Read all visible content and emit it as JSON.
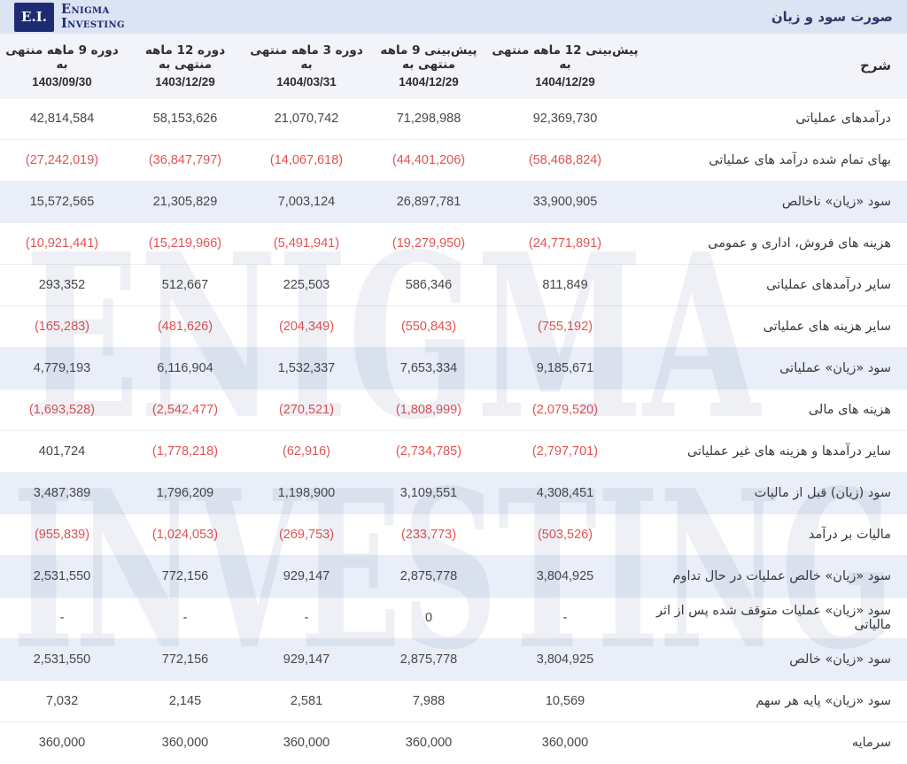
{
  "header": {
    "title": "صورت سود و زیان"
  },
  "brand": {
    "monogram": "E.I.",
    "name_line1": "Enigma",
    "name_line2": "Investing"
  },
  "watermark": {
    "line1": "ENIGMA",
    "line2": "INVESTING"
  },
  "colors": {
    "brand_navy": "#1d2c72",
    "topbar_bg": "#dce3f2",
    "header_row_bg": "#f2f4fa",
    "highlight_row": "#e9eef8",
    "negative_red": "#e35252"
  },
  "table": {
    "desc_header": "شرح",
    "columns": [
      {
        "period": "پیش‌بینی 12 ماهه منتهی به",
        "date": "1404/12/29"
      },
      {
        "period": "پیش‌بینی 9 ماهه منتهی به",
        "date": "1404/12/29"
      },
      {
        "period": "دوره 3 ماهه منتهی به",
        "date": "1404/03/31"
      },
      {
        "period": "دوره 12 ماهه منتهی به",
        "date": "1403/12/29"
      },
      {
        "period": "دوره 9 ماهه منتهی به",
        "date": "1403/09/30"
      }
    ],
    "rows": [
      {
        "label": "درآمدهای عملیاتی",
        "highlight": false,
        "values": [
          "92,369,730",
          "71,298,988",
          "21,070,742",
          "58,153,626",
          "42,814,584"
        ]
      },
      {
        "label": "بهای تمام شده درآمد های عملیاتی",
        "highlight": false,
        "values": [
          "(58,468,824)",
          "(44,401,206)",
          "(14,067,618)",
          "(36,847,797)",
          "(27,242,019)"
        ]
      },
      {
        "label": "سود «زیان» ناخالص",
        "highlight": true,
        "values": [
          "33,900,905",
          "26,897,781",
          "7,003,124",
          "21,305,829",
          "15,572,565"
        ]
      },
      {
        "label": "هزینه های فروش، اداری و عمومی",
        "highlight": false,
        "values": [
          "(24,771,891)",
          "(19,279,950)",
          "(5,491,941)",
          "(15,219,966)",
          "(10,921,441)"
        ]
      },
      {
        "label": "سایر درآمدهای عملیاتی",
        "highlight": false,
        "values": [
          "811,849",
          "586,346",
          "225,503",
          "512,667",
          "293,352"
        ]
      },
      {
        "label": "سایر هزینه های عملیاتی",
        "highlight": false,
        "values": [
          "(755,192)",
          "(550,843)",
          "(204,349)",
          "(481,626)",
          "(165,283)"
        ]
      },
      {
        "label": "سود «زیان» عملیاتی",
        "highlight": true,
        "values": [
          "9,185,671",
          "7,653,334",
          "1,532,337",
          "6,116,904",
          "4,779,193"
        ]
      },
      {
        "label": "هزینه های مالی",
        "highlight": false,
        "values": [
          "(2,079,520)",
          "(1,808,999)",
          "(270,521)",
          "(2,542,477)",
          "(1,693,528)"
        ]
      },
      {
        "label": "سایر درآمدها و هزینه های غیر عملیاتی",
        "highlight": false,
        "values": [
          "(2,797,701)",
          "(2,734,785)",
          "(62,916)",
          "(1,778,218)",
          "401,724"
        ]
      },
      {
        "label": "سود (زیان) قبل از مالیات",
        "highlight": true,
        "values": [
          "4,308,451",
          "3,109,551",
          "1,198,900",
          "1,796,209",
          "3,487,389"
        ]
      },
      {
        "label": "مالیات بر درآمد",
        "highlight": false,
        "values": [
          "(503,526)",
          "(233,773)",
          "(269,753)",
          "(1,024,053)",
          "(955,839)"
        ]
      },
      {
        "label": "سود «زیان» خالص عملیات در حال تداوم",
        "highlight": true,
        "values": [
          "3,804,925",
          "2,875,778",
          "929,147",
          "772,156",
          "2,531,550"
        ]
      },
      {
        "label": "سود «زیان» عملیات متوقف شده پس از اثر مالیاتی",
        "highlight": false,
        "values": [
          "-",
          "0",
          "-",
          "-",
          "-"
        ]
      },
      {
        "label": "سود «زیان» خالص",
        "highlight": true,
        "values": [
          "3,804,925",
          "2,875,778",
          "929,147",
          "772,156",
          "2,531,550"
        ]
      },
      {
        "label": "سود «زیان» پایه هر سهم",
        "highlight": false,
        "values": [
          "10,569",
          "7,988",
          "2,581",
          "2,145",
          "7,032"
        ]
      },
      {
        "label": "سرمایه",
        "highlight": false,
        "values": [
          "360,000",
          "360,000",
          "360,000",
          "360,000",
          "360,000"
        ]
      }
    ]
  }
}
